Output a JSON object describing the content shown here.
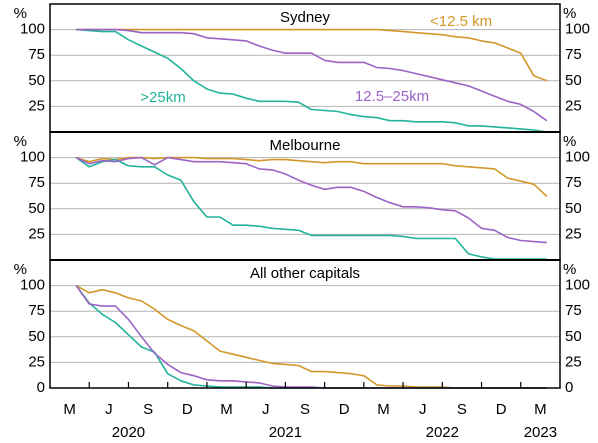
{
  "chart_data": [
    {
      "type": "line",
      "title": "Sydney",
      "ylabel": "%",
      "ylim": [
        0,
        125
      ],
      "yticks": [
        25,
        50,
        75,
        100
      ],
      "grid": true,
      "xlim": [
        "2020-01",
        "2023-04"
      ],
      "x": [
        "2020-03",
        "2020-04",
        "2020-05",
        "2020-06",
        "2020-07",
        "2020-08",
        "2020-09",
        "2020-10",
        "2020-11",
        "2020-12",
        "2021-01",
        "2021-02",
        "2021-03",
        "2021-04",
        "2021-05",
        "2021-06",
        "2021-07",
        "2021-08",
        "2021-09",
        "2021-10",
        "2021-11",
        "2021-12",
        "2022-01",
        "2022-02",
        "2022-03",
        "2022-04",
        "2022-05",
        "2022-06",
        "2022-07",
        "2022-08",
        "2022-09",
        "2022-10",
        "2022-11",
        "2022-12",
        "2023-01",
        "2023-02",
        "2023-03"
      ],
      "series": [
        {
          "name": "<12.5 km",
          "color": "#d3972a",
          "values": [
            100,
            100,
            100,
            100,
            100,
            100,
            100,
            100,
            100,
            100,
            100,
            100,
            100,
            100,
            100,
            100,
            100,
            100,
            100,
            100,
            100,
            100,
            100,
            100,
            99,
            98,
            97,
            96,
            95,
            93,
            92,
            89,
            87,
            82,
            77,
            55,
            50
          ]
        },
        {
          "name": ">25km",
          "color": "#22b39a",
          "values": [
            100,
            99,
            98,
            98,
            90,
            84,
            78,
            72,
            62,
            50,
            42,
            38,
            37,
            33,
            30,
            30,
            30,
            29,
            22,
            21,
            20,
            17,
            15,
            14,
            11,
            11,
            10,
            10,
            10,
            9,
            6,
            6,
            5,
            4,
            3,
            2,
            0
          ]
        },
        {
          "name": "12.5–25km",
          "color": "#9b64c6",
          "values": [
            100,
            100,
            100,
            100,
            99,
            97,
            97,
            97,
            97,
            96,
            92,
            91,
            90,
            89,
            84,
            80,
            77,
            77,
            77,
            70,
            68,
            68,
            68,
            63,
            62,
            60,
            57,
            54,
            51,
            48,
            45,
            40,
            35,
            30,
            27,
            20,
            11
          ]
        }
      ]
    },
    {
      "type": "line",
      "title": "Melbourne",
      "ylabel": "%",
      "ylim": [
        0,
        125
      ],
      "yticks": [
        25,
        50,
        75,
        100
      ],
      "grid": true,
      "xlim": [
        "2020-01",
        "2023-04"
      ],
      "x": [
        "2020-03",
        "2020-04",
        "2020-05",
        "2020-06",
        "2020-07",
        "2020-08",
        "2020-09",
        "2020-10",
        "2020-11",
        "2020-12",
        "2021-01",
        "2021-02",
        "2021-03",
        "2021-04",
        "2021-05",
        "2021-06",
        "2021-07",
        "2021-08",
        "2021-09",
        "2021-10",
        "2021-11",
        "2021-12",
        "2022-01",
        "2022-02",
        "2022-03",
        "2022-04",
        "2022-05",
        "2022-06",
        "2022-07",
        "2022-08",
        "2022-09",
        "2022-10",
        "2022-11",
        "2022-12",
        "2023-01",
        "2023-02",
        "2023-03"
      ],
      "series": [
        {
          "color": "#d3972a",
          "values": [
            100,
            96,
            99,
            98,
            100,
            100,
            99,
            100,
            100,
            100,
            99,
            99,
            99,
            98,
            97,
            98,
            98,
            97,
            96,
            95,
            96,
            96,
            94,
            94,
            94,
            94,
            94,
            94,
            94,
            92,
            91,
            90,
            89,
            80,
            77,
            74,
            62
          ]
        },
        {
          "color": "#22b39a",
          "values": [
            100,
            91,
            96,
            98,
            92,
            91,
            91,
            83,
            78,
            57,
            42,
            42,
            34,
            34,
            33,
            31,
            30,
            29,
            24,
            24,
            24,
            24,
            24,
            24,
            24,
            23,
            21,
            21,
            21,
            21,
            6,
            3,
            1,
            1,
            1,
            1,
            1
          ]
        },
        {
          "color": "#9b64c6",
          "values": [
            100,
            94,
            97,
            96,
            99,
            100,
            93,
            100,
            98,
            96,
            96,
            96,
            95,
            94,
            89,
            88,
            84,
            78,
            73,
            69,
            71,
            71,
            67,
            61,
            56,
            52,
            52,
            51,
            49,
            48,
            41,
            31,
            29,
            22,
            19,
            18,
            17
          ]
        }
      ]
    },
    {
      "type": "line",
      "title": "All other capitals",
      "ylabel": "%",
      "ylim": [
        0,
        125
      ],
      "yticks": [
        0,
        25,
        50,
        75,
        100
      ],
      "grid": true,
      "xlim": [
        "2020-01",
        "2023-04"
      ],
      "x": [
        "2020-03",
        "2020-04",
        "2020-05",
        "2020-06",
        "2020-07",
        "2020-08",
        "2020-09",
        "2020-10",
        "2020-11",
        "2020-12",
        "2021-01",
        "2021-02",
        "2021-03",
        "2021-04",
        "2021-05",
        "2021-06",
        "2021-07",
        "2021-08",
        "2021-09",
        "2021-10",
        "2021-11",
        "2021-12",
        "2022-01",
        "2022-02",
        "2022-03",
        "2022-04",
        "2022-05",
        "2022-06",
        "2022-07",
        "2022-08",
        "2022-09",
        "2022-10",
        "2022-11",
        "2022-12",
        "2023-01",
        "2023-02",
        "2023-03"
      ],
      "series": [
        {
          "color": "#d3972a",
          "values": [
            100,
            93,
            96,
            93,
            88,
            85,
            77,
            67,
            61,
            56,
            46,
            36,
            33,
            30,
            27,
            24,
            23,
            22,
            16,
            16,
            15,
            14,
            12,
            3,
            2,
            2,
            1,
            1,
            1,
            0,
            0,
            0,
            0,
            0,
            0,
            0,
            0
          ]
        },
        {
          "color": "#22b39a",
          "values": [
            100,
            83,
            72,
            64,
            52,
            40,
            35,
            14,
            7,
            3,
            2,
            1,
            1,
            1,
            1,
            0,
            0,
            0,
            0,
            0,
            0,
            0,
            0,
            0,
            0,
            0,
            0,
            0,
            0,
            0,
            0,
            0,
            0,
            0,
            0,
            0,
            0
          ]
        },
        {
          "color": "#9b64c6",
          "values": [
            100,
            82,
            80,
            80,
            67,
            50,
            34,
            23,
            15,
            12,
            8,
            7,
            7,
            6,
            5,
            2,
            1,
            1,
            1,
            0,
            0,
            0,
            0,
            0,
            0,
            0,
            0,
            0,
            0,
            0,
            0,
            0,
            0,
            0,
            0,
            0,
            0
          ]
        }
      ],
      "xticks": [
        {
          "value": "2020-03",
          "label": "M"
        },
        {
          "value": "2020-06",
          "label": "J"
        },
        {
          "value": "2020-09",
          "label": "S"
        },
        {
          "value": "2020-12",
          "label": "D"
        },
        {
          "value": "2021-03",
          "label": "M"
        },
        {
          "value": "2021-06",
          "label": "J"
        },
        {
          "value": "2021-09",
          "label": "S"
        },
        {
          "value": "2021-12",
          "label": "D"
        },
        {
          "value": "2022-03",
          "label": "M"
        },
        {
          "value": "2022-06",
          "label": "J"
        },
        {
          "value": "2022-09",
          "label": "S"
        },
        {
          "value": "2022-12",
          "label": "D"
        },
        {
          "value": "2023-03",
          "label": "M"
        }
      ],
      "year_labels": [
        "2020",
        "2021",
        "2022",
        "2023"
      ]
    }
  ]
}
